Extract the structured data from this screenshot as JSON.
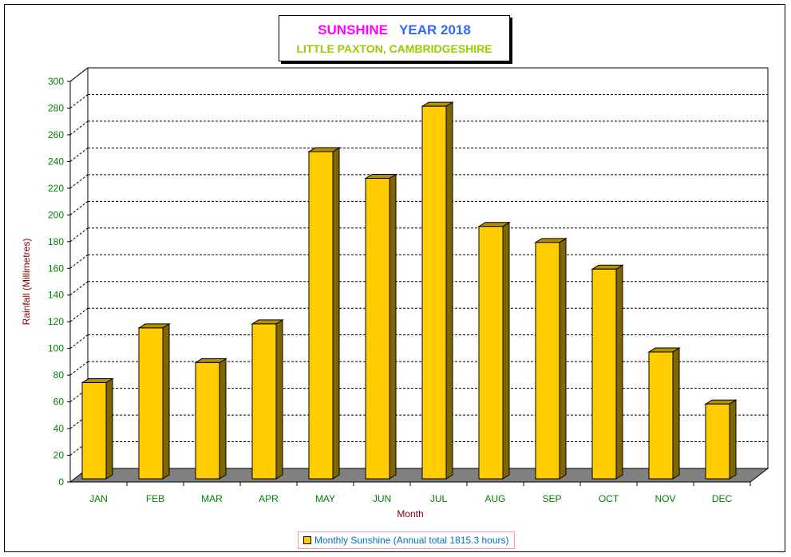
{
  "title": {
    "part1": "SUNSHINE",
    "part2": "YEAR 2018",
    "subtitle": "LITTLE PAXTON, CAMBRIDGESHIRE"
  },
  "colors": {
    "bar_front": "#ffcc00",
    "bar_side": "#7f6600",
    "floor": "#808080",
    "axis_text": "#008000",
    "axis_title": "#800000",
    "title1": "#ff00ff",
    "title2": "#3366ff",
    "subtitle": "#99cc00",
    "legend_text": "#0070c0"
  },
  "chart_data": {
    "type": "bar",
    "title": "SUNSHINE YEAR 2018",
    "subtitle": "LITTLE PAXTON, CAMBRIDGESHIRE",
    "xlabel": "Month",
    "ylabel": "Rainfall  (Millimetres)",
    "categories": [
      "JAN",
      "FEB",
      "MAR",
      "APR",
      "MAY",
      "JUN",
      "JUL",
      "AUG",
      "SEP",
      "OCT",
      "NOV",
      "DEC"
    ],
    "series": [
      {
        "name": "Monthly Sunshine (Annual total 1815.3 hours)",
        "values": [
          72,
          113,
          87,
          116,
          245,
          225,
          279,
          189,
          177,
          157,
          95,
          56
        ]
      }
    ],
    "ylim": [
      0,
      300
    ],
    "yticks": [
      0,
      20,
      40,
      60,
      80,
      100,
      120,
      140,
      160,
      180,
      200,
      220,
      240,
      260,
      280,
      300
    ],
    "grid": true,
    "legend_position": "bottom-center",
    "style": "3d"
  }
}
